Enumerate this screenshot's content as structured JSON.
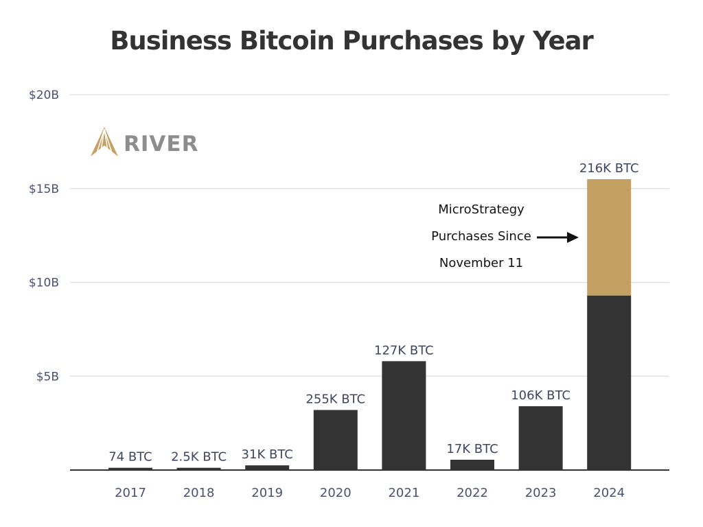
{
  "chart_data": {
    "type": "bar",
    "stacked": true,
    "title": "Business Bitcoin Purchases by Year",
    "categories": [
      "2017",
      "2018",
      "2019",
      "2020",
      "2021",
      "2022",
      "2023",
      "2024"
    ],
    "series": [
      {
        "values": [
          0.12,
          0.12,
          0.25,
          3.2,
          5.8,
          0.55,
          3.4,
          9.3
        ],
        "color": "#333333"
      },
      {
        "values": [
          0,
          0,
          0,
          0,
          0,
          0,
          0,
          6.2
        ],
        "color": "#c4a063"
      }
    ],
    "data_labels": [
      "74 BTC",
      "2.5K BTC",
      "31K BTC",
      "255K BTC",
      "127K BTC",
      "17K BTC",
      "106K BTC",
      "216K BTC"
    ],
    "ylim": [
      0,
      20
    ],
    "yticks": [
      5,
      10,
      15,
      20
    ],
    "ytick_labels": [
      "$5B",
      "$10B",
      "$15B",
      "$20B"
    ],
    "grid": true,
    "annotation": {
      "lines": [
        "MicroStrategy",
        "Purchases Since",
        "November 11"
      ],
      "arrow": "right",
      "target_category": "2024"
    }
  },
  "logo": {
    "text": "RIVER",
    "icon": "river-peak-icon",
    "color": "#c4a063"
  }
}
